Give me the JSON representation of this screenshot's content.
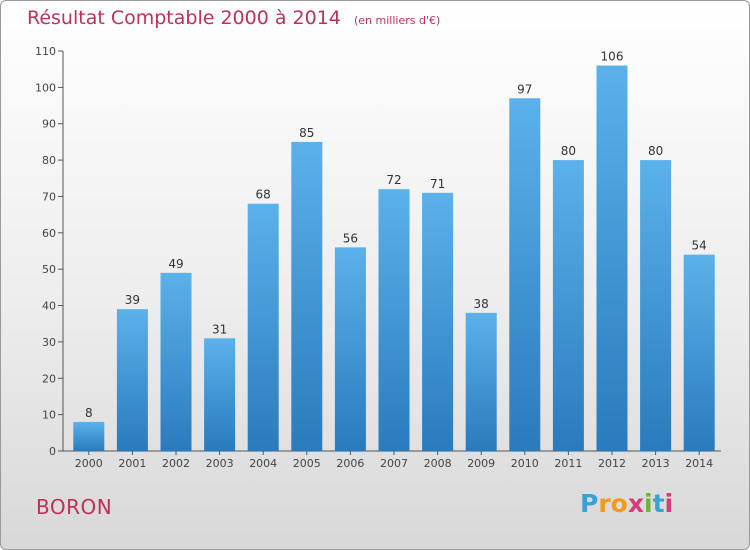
{
  "title": "Résultat Comptable 2000 à 2014",
  "unit": "(en milliers d'€)",
  "commune": "BORON",
  "logo": {
    "letters": [
      "P",
      "r",
      "o",
      "x",
      "i",
      "t",
      "i"
    ],
    "colors": [
      "#3aa0d8",
      "#f29a1d",
      "#f29a1d",
      "#d93a7a",
      "#6cb33f",
      "#3aa0d8",
      "#d93a7a"
    ]
  },
  "colors": {
    "bar_top": "#5bb1ea",
    "bar_bottom": "#2a7bbd",
    "title": "#c0305a"
  },
  "chart_data": {
    "type": "bar",
    "title": "Résultat Comptable 2000 à 2014",
    "subtitle": "(en milliers d'€)",
    "xlabel": "",
    "ylabel": "",
    "categories": [
      "2000",
      "2001",
      "2002",
      "2003",
      "2004",
      "2005",
      "2006",
      "2007",
      "2008",
      "2009",
      "2010",
      "2011",
      "2012",
      "2013",
      "2014"
    ],
    "values": [
      8,
      39,
      49,
      31,
      68,
      85,
      56,
      72,
      71,
      38,
      97,
      80,
      106,
      80,
      54
    ],
    "ylim": [
      0,
      110
    ],
    "yticks": [
      0,
      10,
      20,
      30,
      40,
      50,
      60,
      70,
      80,
      90,
      100,
      110
    ],
    "grid": false,
    "data_labels": true
  }
}
